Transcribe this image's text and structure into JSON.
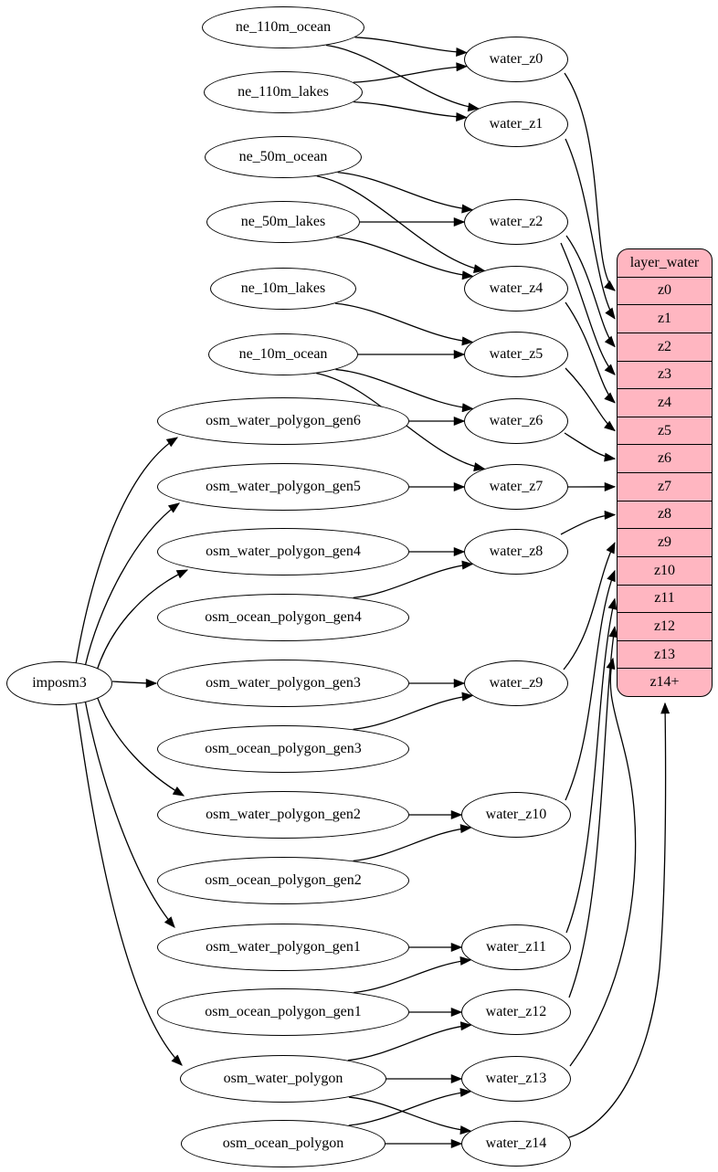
{
  "colors": {
    "background": "#ffffff",
    "node_fill": "#ffffff",
    "node_stroke": "#000000",
    "record_fill": "#ffb6c1",
    "edge_color": "#000000"
  },
  "graph": {
    "nodes": [
      {
        "id": "ne_110m_ocean",
        "label": "ne_110m_ocean",
        "kind": "source-table"
      },
      {
        "id": "ne_110m_lakes",
        "label": "ne_110m_lakes",
        "kind": "source-table"
      },
      {
        "id": "ne_50m_ocean",
        "label": "ne_50m_ocean",
        "kind": "source-table"
      },
      {
        "id": "ne_50m_lakes",
        "label": "ne_50m_lakes",
        "kind": "source-table"
      },
      {
        "id": "ne_10m_lakes",
        "label": "ne_10m_lakes",
        "kind": "source-table"
      },
      {
        "id": "ne_10m_ocean",
        "label": "ne_10m_ocean",
        "kind": "source-table"
      },
      {
        "id": "osm_water_polygon_gen6",
        "label": "osm_water_polygon_gen6",
        "kind": "source-table"
      },
      {
        "id": "osm_water_polygon_gen5",
        "label": "osm_water_polygon_gen5",
        "kind": "source-table"
      },
      {
        "id": "osm_water_polygon_gen4",
        "label": "osm_water_polygon_gen4",
        "kind": "source-table"
      },
      {
        "id": "osm_ocean_polygon_gen4",
        "label": "osm_ocean_polygon_gen4",
        "kind": "source-table"
      },
      {
        "id": "osm_water_polygon_gen3",
        "label": "osm_water_polygon_gen3",
        "kind": "source-table"
      },
      {
        "id": "osm_ocean_polygon_gen3",
        "label": "osm_ocean_polygon_gen3",
        "kind": "source-table"
      },
      {
        "id": "osm_water_polygon_gen2",
        "label": "osm_water_polygon_gen2",
        "kind": "source-table"
      },
      {
        "id": "osm_ocean_polygon_gen2",
        "label": "osm_ocean_polygon_gen2",
        "kind": "source-table"
      },
      {
        "id": "osm_water_polygon_gen1",
        "label": "osm_water_polygon_gen1",
        "kind": "source-table"
      },
      {
        "id": "osm_ocean_polygon_gen1",
        "label": "osm_ocean_polygon_gen1",
        "kind": "source-table"
      },
      {
        "id": "osm_water_polygon",
        "label": "osm_water_polygon",
        "kind": "source-table"
      },
      {
        "id": "osm_ocean_polygon",
        "label": "osm_ocean_polygon",
        "kind": "source-table"
      },
      {
        "id": "imposm3",
        "label": "imposm3",
        "kind": "importer"
      },
      {
        "id": "water_z0",
        "label": "water_z0",
        "kind": "view"
      },
      {
        "id": "water_z1",
        "label": "water_z1",
        "kind": "view"
      },
      {
        "id": "water_z2",
        "label": "water_z2",
        "kind": "view"
      },
      {
        "id": "water_z4",
        "label": "water_z4",
        "kind": "view"
      },
      {
        "id": "water_z5",
        "label": "water_z5",
        "kind": "view"
      },
      {
        "id": "water_z6",
        "label": "water_z6",
        "kind": "view"
      },
      {
        "id": "water_z7",
        "label": "water_z7",
        "kind": "view"
      },
      {
        "id": "water_z8",
        "label": "water_z8",
        "kind": "view"
      },
      {
        "id": "water_z9",
        "label": "water_z9",
        "kind": "view"
      },
      {
        "id": "water_z10",
        "label": "water_z10",
        "kind": "view"
      },
      {
        "id": "water_z11",
        "label": "water_z11",
        "kind": "view"
      },
      {
        "id": "water_z12",
        "label": "water_z12",
        "kind": "view"
      },
      {
        "id": "water_z13",
        "label": "water_z13",
        "kind": "view"
      },
      {
        "id": "water_z14",
        "label": "water_z14",
        "kind": "view"
      }
    ],
    "record": {
      "id": "layer_water",
      "title": "layer_water",
      "rows": [
        "z0",
        "z1",
        "z2",
        "z3",
        "z4",
        "z5",
        "z6",
        "z7",
        "z8",
        "z9",
        "z10",
        "z11",
        "z12",
        "z13",
        "z14+"
      ]
    },
    "edges": [
      [
        "imposm3",
        "osm_water_polygon_gen6"
      ],
      [
        "imposm3",
        "osm_water_polygon_gen5"
      ],
      [
        "imposm3",
        "osm_water_polygon_gen4"
      ],
      [
        "imposm3",
        "osm_water_polygon_gen3"
      ],
      [
        "imposm3",
        "osm_water_polygon_gen2"
      ],
      [
        "imposm3",
        "osm_water_polygon_gen1"
      ],
      [
        "imposm3",
        "osm_water_polygon"
      ],
      [
        "ne_110m_ocean",
        "water_z0"
      ],
      [
        "ne_110m_ocean",
        "water_z1"
      ],
      [
        "ne_110m_lakes",
        "water_z0"
      ],
      [
        "ne_110m_lakes",
        "water_z1"
      ],
      [
        "ne_50m_ocean",
        "water_z2"
      ],
      [
        "ne_50m_ocean",
        "water_z4"
      ],
      [
        "ne_50m_lakes",
        "water_z2"
      ],
      [
        "ne_50m_lakes",
        "water_z4"
      ],
      [
        "ne_10m_lakes",
        "water_z5"
      ],
      [
        "ne_10m_ocean",
        "water_z5"
      ],
      [
        "ne_10m_ocean",
        "water_z6"
      ],
      [
        "ne_10m_ocean",
        "water_z7"
      ],
      [
        "osm_water_polygon_gen6",
        "water_z6"
      ],
      [
        "osm_water_polygon_gen5",
        "water_z7"
      ],
      [
        "osm_water_polygon_gen4",
        "water_z8"
      ],
      [
        "osm_ocean_polygon_gen4",
        "water_z8"
      ],
      [
        "osm_water_polygon_gen3",
        "water_z9"
      ],
      [
        "osm_ocean_polygon_gen3",
        "water_z9"
      ],
      [
        "osm_water_polygon_gen2",
        "water_z10"
      ],
      [
        "osm_ocean_polygon_gen2",
        "water_z10"
      ],
      [
        "osm_water_polygon_gen1",
        "water_z11"
      ],
      [
        "osm_ocean_polygon_gen1",
        "water_z11"
      ],
      [
        "osm_ocean_polygon_gen1",
        "water_z12"
      ],
      [
        "osm_water_polygon",
        "water_z12"
      ],
      [
        "osm_water_polygon",
        "water_z13"
      ],
      [
        "osm_water_polygon",
        "water_z14"
      ],
      [
        "osm_ocean_polygon",
        "water_z13"
      ],
      [
        "osm_ocean_polygon",
        "water_z14"
      ],
      [
        "water_z0",
        "layer_water:z0"
      ],
      [
        "water_z1",
        "layer_water:z1"
      ],
      [
        "water_z2",
        "layer_water:z2"
      ],
      [
        "water_z2",
        "layer_water:z3"
      ],
      [
        "water_z4",
        "layer_water:z4"
      ],
      [
        "water_z5",
        "layer_water:z5"
      ],
      [
        "water_z6",
        "layer_water:z6"
      ],
      [
        "water_z7",
        "layer_water:z7"
      ],
      [
        "water_z8",
        "layer_water:z8"
      ],
      [
        "water_z9",
        "layer_water:z9"
      ],
      [
        "water_z10",
        "layer_water:z10"
      ],
      [
        "water_z11",
        "layer_water:z11"
      ],
      [
        "water_z12",
        "layer_water:z12"
      ],
      [
        "water_z13",
        "layer_water:z13"
      ],
      [
        "water_z14",
        "layer_water:z14+"
      ]
    ]
  }
}
